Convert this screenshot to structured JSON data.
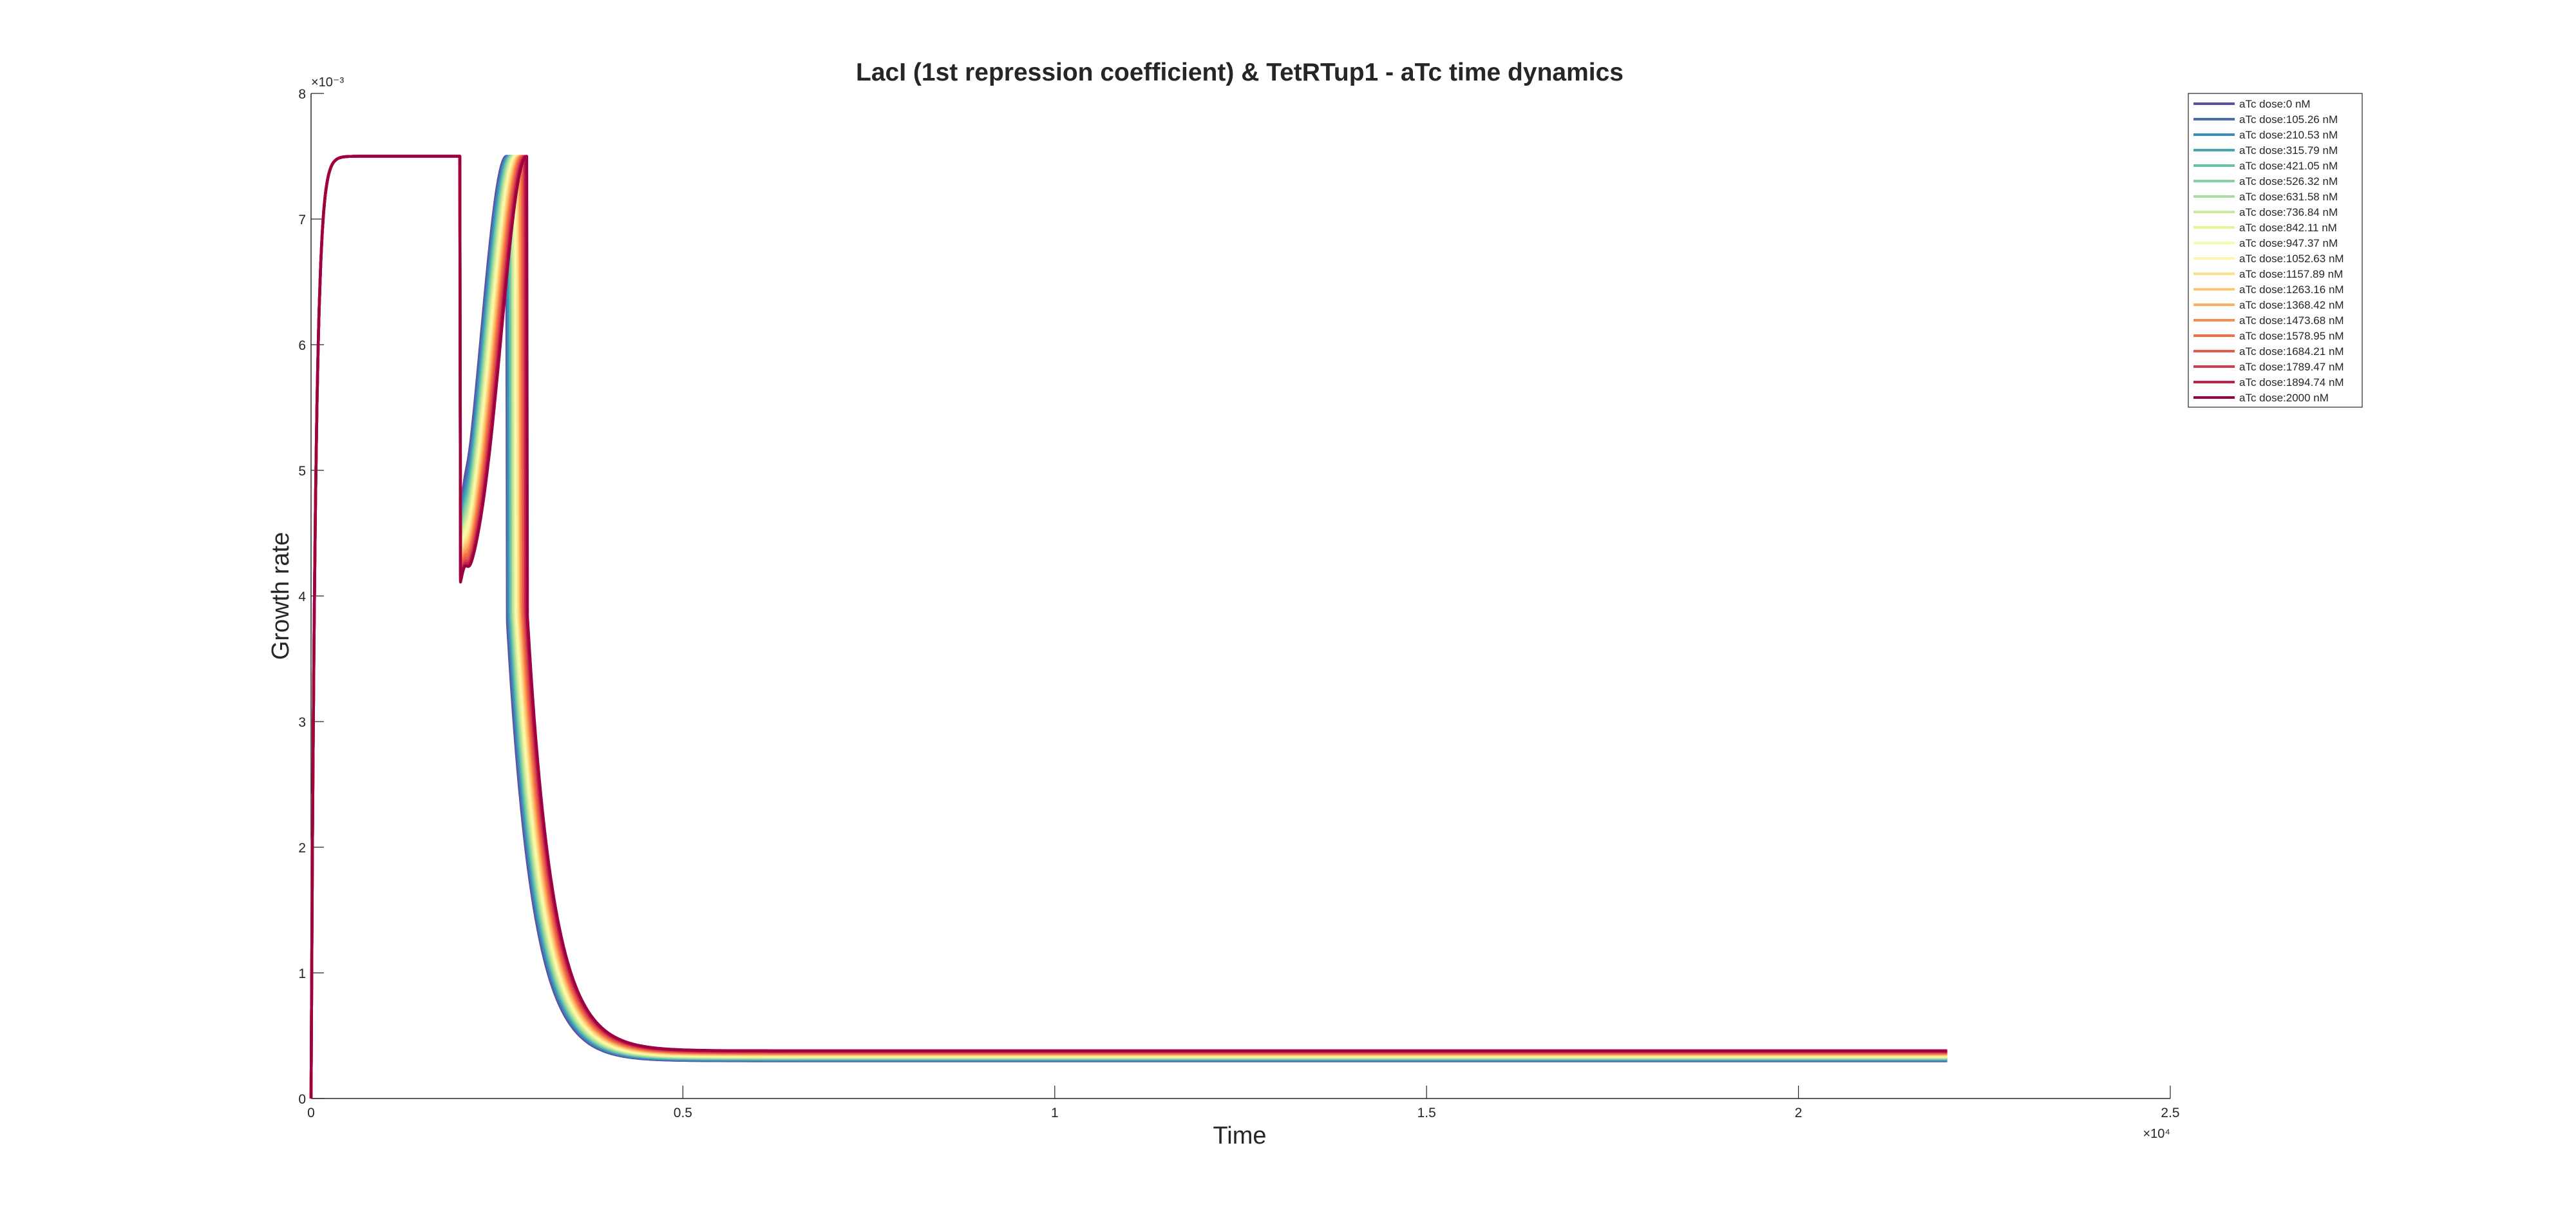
{
  "chart_data": {
    "type": "line",
    "title": "LacI (1st repression coefficient) & TetRTup1 - aTc time dynamics",
    "xlabel": "Time",
    "ylabel": "Growth rate",
    "xlim": [
      0,
      25000
    ],
    "ylim": [
      0,
      0.008
    ],
    "x_ticks": [
      0,
      5000,
      10000,
      15000,
      20000,
      25000
    ],
    "x_tick_labels": [
      "0",
      "0.5",
      "1",
      "1.5",
      "2",
      "2.5"
    ],
    "x_exponent_label": "×10⁴",
    "y_ticks": [
      0,
      0.001,
      0.002,
      0.003,
      0.004,
      0.005,
      0.006,
      0.007,
      0.008
    ],
    "y_tick_labels": [
      "0",
      "1",
      "2",
      "3",
      "4",
      "5",
      "6",
      "7",
      "8"
    ],
    "y_exponent_label": "×10⁻³",
    "grid": false,
    "legend_position": "top-right",
    "curve_shape": {
      "plateau_value": 0.0075,
      "initial_rise_tau": 60,
      "switch_time": 2000,
      "bump_peak": 0.0076,
      "midpoint_time_first": 2630,
      "midpoint_time_last": 2900,
      "final_value_first": 0.0003,
      "final_value_last": 0.00038,
      "end_time": 22000
    },
    "series": [
      {
        "name": "aTc dose:0 nM",
        "color": "#5e4fa2"
      },
      {
        "name": "aTc dose:105.26 nM",
        "color": "#4a6db0"
      },
      {
        "name": "aTc dose:210.53 nM",
        "color": "#3a8ebb"
      },
      {
        "name": "aTc dose:315.79 nM",
        "color": "#48a6b2"
      },
      {
        "name": "aTc dose:421.05 nM",
        "color": "#66c2a5"
      },
      {
        "name": "aTc dose:526.32 nM",
        "color": "#89cfa4"
      },
      {
        "name": "aTc dose:631.58 nM",
        "color": "#abdda4"
      },
      {
        "name": "aTc dose:736.84 nM",
        "color": "#cbe99d"
      },
      {
        "name": "aTc dose:842.11 nM",
        "color": "#e6f598"
      },
      {
        "name": "aTc dose:947.37 nM",
        "color": "#f4faad"
      },
      {
        "name": "aTc dose:1052.63 nM",
        "color": "#fff3a8"
      },
      {
        "name": "aTc dose:1157.89 nM",
        "color": "#fee08b"
      },
      {
        "name": "aTc dose:1263.16 nM",
        "color": "#fdc776"
      },
      {
        "name": "aTc dose:1368.42 nM",
        "color": "#fdae61"
      },
      {
        "name": "aTc dose:1473.68 nM",
        "color": "#f98e52"
      },
      {
        "name": "aTc dose:1578.95 nM",
        "color": "#f46d43"
      },
      {
        "name": "aTc dose:1684.21 nM",
        "color": "#e55a4a"
      },
      {
        "name": "aTc dose:1789.47 nM",
        "color": "#d53e4f"
      },
      {
        "name": "aTc dose:1894.74 nM",
        "color": "#c21e4a"
      },
      {
        "name": "aTc dose:2000 nM",
        "color": "#9e0142"
      }
    ]
  }
}
